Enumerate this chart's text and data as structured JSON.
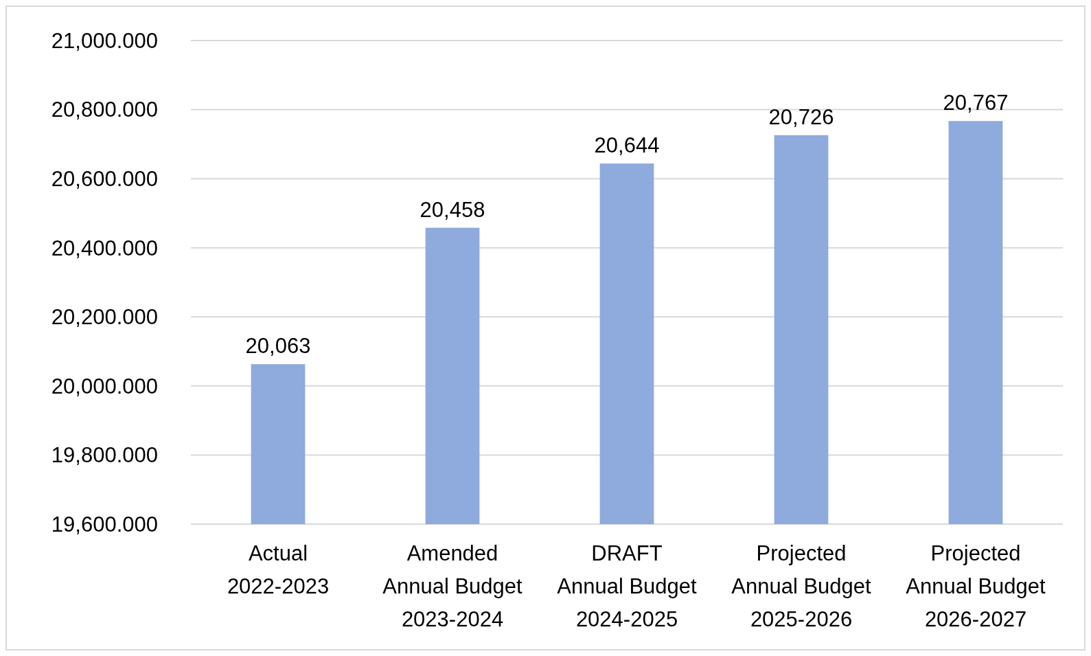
{
  "chart_data": {
    "type": "bar",
    "categories": [
      "Actual\n2022-2023",
      "Amended\nAnnual Budget\n2023-2024",
      "DRAFT\nAnnual Budget\n2024-2025",
      "Projected\nAnnual Budget\n2025-2026",
      "Projected\nAnnual Budget\n2026-2027"
    ],
    "values": [
      20063,
      20458,
      20644,
      20726,
      20767
    ],
    "color": "#8faadc",
    "ylim": [
      19600,
      21000
    ],
    "yticks": [
      {
        "value": 19600,
        "label": "19,600.000"
      },
      {
        "value": 19800,
        "label": "19,800.000"
      },
      {
        "value": 20000,
        "label": "20,000.000"
      },
      {
        "value": 20200,
        "label": "20,200.000"
      },
      {
        "value": 20400,
        "label": "20,400.000"
      },
      {
        "value": 20600,
        "label": "20,600.000"
      },
      {
        "value": 20800,
        "label": "20,800.000"
      },
      {
        "value": 21000,
        "label": "21,000.000"
      }
    ],
    "value_labels": [
      "20,063",
      "20,458",
      "20,644",
      "20,726",
      "20,767"
    ],
    "grid": "y"
  }
}
